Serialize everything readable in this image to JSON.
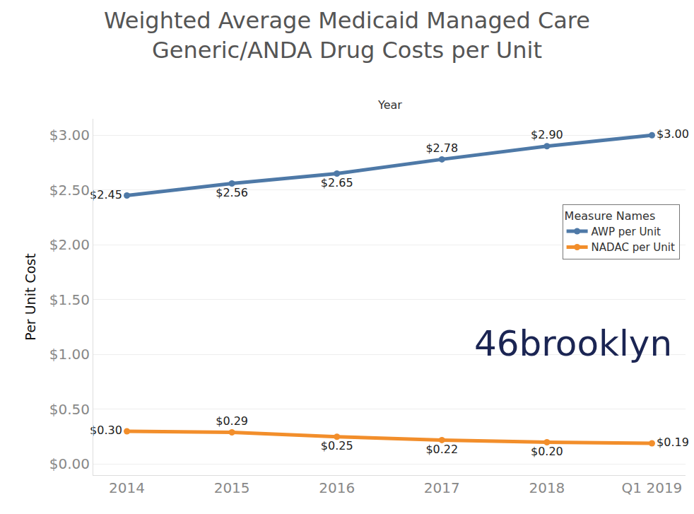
{
  "chart_data": {
    "type": "line",
    "title": [
      "Weighted Average Medicaid Managed Care",
      "Generic/ANDA Drug Costs per Unit"
    ],
    "x_label": "Year",
    "y_label": "Per Unit Cost",
    "categories": [
      "2014",
      "2015",
      "2016",
      "2017",
      "2018",
      "Q1 2019"
    ],
    "series": [
      {
        "name": "AWP per Unit",
        "color": "#4e79a7",
        "marker": "circle",
        "line_style": "solid",
        "values": [
          2.45,
          2.56,
          2.65,
          2.78,
          2.9,
          3.0
        ],
        "value_labels": [
          "$2.45",
          "$2.56",
          "$2.65",
          "$2.78",
          "$2.90",
          "$3.00"
        ]
      },
      {
        "name": "NADAC per Unit",
        "color": "#f28e2b",
        "marker": "circle",
        "line_style": "solid",
        "values": [
          0.3,
          0.29,
          0.25,
          0.22,
          0.2,
          0.19
        ],
        "value_labels": [
          "$0.30",
          "$0.29",
          "$0.25",
          "$0.22",
          "$0.20",
          "$0.19"
        ]
      }
    ],
    "ylim": [
      -0.1,
      3.15
    ],
    "yticks": [
      {
        "value": 0,
        "label": "$0.00"
      },
      {
        "value": 0.5,
        "label": "$0.50"
      },
      {
        "value": 1,
        "label": "$1.00"
      },
      {
        "value": 1.5,
        "label": "$1.50"
      },
      {
        "value": 2,
        "label": "$2.00"
      },
      {
        "value": 2.5,
        "label": "$2.50"
      },
      {
        "value": 3,
        "label": "$3.00"
      }
    ],
    "grid": true,
    "data_labels": true,
    "legend": "upper right",
    "legend_title": "Measure Names",
    "annotations": [
      {
        "text": "46brooklyn"
      }
    ]
  }
}
